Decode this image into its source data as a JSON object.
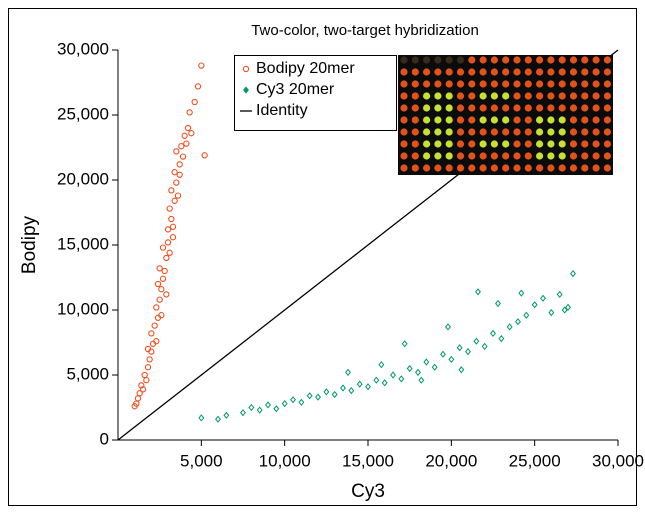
{
  "chart_data": {
    "type": "scatter",
    "title": "Two-color, two-target hybridization",
    "xlabel": "Cy3",
    "ylabel": "Bodipy",
    "xlim": [
      0,
      30000
    ],
    "ylim": [
      0,
      30000
    ],
    "xticks": [
      {
        "value": 5000,
        "label": "5,000"
      },
      {
        "value": 10000,
        "label": "10,000"
      },
      {
        "value": 15000,
        "label": "15,000"
      },
      {
        "value": 20000,
        "label": "20,000"
      },
      {
        "value": 25000,
        "label": "25,000"
      },
      {
        "value": 30000,
        "label": "30,000"
      }
    ],
    "yticks": [
      0,
      {
        "value": 5000,
        "label": "5,000"
      },
      {
        "value": 10000,
        "label": "10,000"
      },
      {
        "value": 15000,
        "label": "15,000"
      },
      {
        "value": 20000,
        "label": "20,000"
      },
      {
        "value": 25000,
        "label": "25,000"
      },
      {
        "value": 30000,
        "label": "30,000"
      }
    ],
    "series": [
      {
        "name": "Bodipy 20mer",
        "color": "#f04e1e",
        "marker": "circle",
        "x": [
          1000,
          1100,
          1200,
          1300,
          1400,
          1500,
          1600,
          1700,
          1800,
          1900,
          2000,
          2100,
          2000,
          2200,
          2300,
          2400,
          2300,
          2500,
          2600,
          2600,
          2700,
          2500,
          2800,
          2900,
          2700,
          3000,
          3100,
          3000,
          3200,
          3100,
          3300,
          3400,
          3200,
          3500,
          3600,
          3400,
          3700,
          3500,
          3800,
          3900,
          4000,
          3700,
          4200,
          4300,
          4400,
          4600,
          4800,
          5000,
          5200,
          4100,
          2900,
          2400,
          3300,
          1800
        ],
        "values": [
          2600,
          2800,
          3200,
          3600,
          4200,
          3900,
          5000,
          4600,
          5600,
          6200,
          6800,
          7400,
          8200,
          8800,
          7600,
          9400,
          10200,
          10800,
          9600,
          11600,
          12400,
          13200,
          13000,
          14000,
          14800,
          15200,
          14400,
          16200,
          17000,
          17800,
          16400,
          18400,
          19200,
          19800,
          18800,
          20600,
          21200,
          22200,
          22600,
          21800,
          23400,
          20400,
          24000,
          25200,
          23600,
          26000,
          27200,
          28800,
          21900,
          22800,
          11200,
          12000,
          15600,
          7000
        ]
      },
      {
        "name": "Cy3 20mer",
        "color": "#00996b",
        "marker": "diamond",
        "x": [
          5000,
          6000,
          6500,
          7500,
          8000,
          8500,
          9000,
          9500,
          10000,
          10500,
          11000,
          11500,
          12000,
          12500,
          13000,
          13500,
          14000,
          14500,
          15000,
          15500,
          16000,
          16500,
          17000,
          17500,
          18000,
          18500,
          19000,
          19500,
          20000,
          20500,
          21000,
          21500,
          22000,
          22500,
          23000,
          23500,
          24000,
          24500,
          25000,
          25500,
          26000,
          26500,
          27000,
          27300,
          22800,
          21600,
          19800,
          17200,
          15800,
          13800,
          18200,
          20600,
          24200,
          26800
        ],
        "values": [
          1700,
          1600,
          1900,
          2100,
          2500,
          2300,
          2700,
          2400,
          2800,
          3100,
          2900,
          3400,
          3300,
          3700,
          3500,
          4000,
          3800,
          4300,
          4100,
          4600,
          4400,
          5000,
          4700,
          5500,
          5200,
          6000,
          5600,
          6600,
          6200,
          7100,
          6800,
          7600,
          7200,
          8200,
          7800,
          8700,
          9100,
          9600,
          10400,
          10900,
          9800,
          11200,
          10200,
          12800,
          10500,
          11400,
          8700,
          7400,
          5800,
          5200,
          4600,
          5400,
          11300,
          10000
        ]
      },
      {
        "name": "Identity",
        "color": "#000000",
        "marker": "line",
        "x": [
          0,
          30000
        ],
        "values": [
          0,
          30000
        ]
      }
    ]
  }
}
